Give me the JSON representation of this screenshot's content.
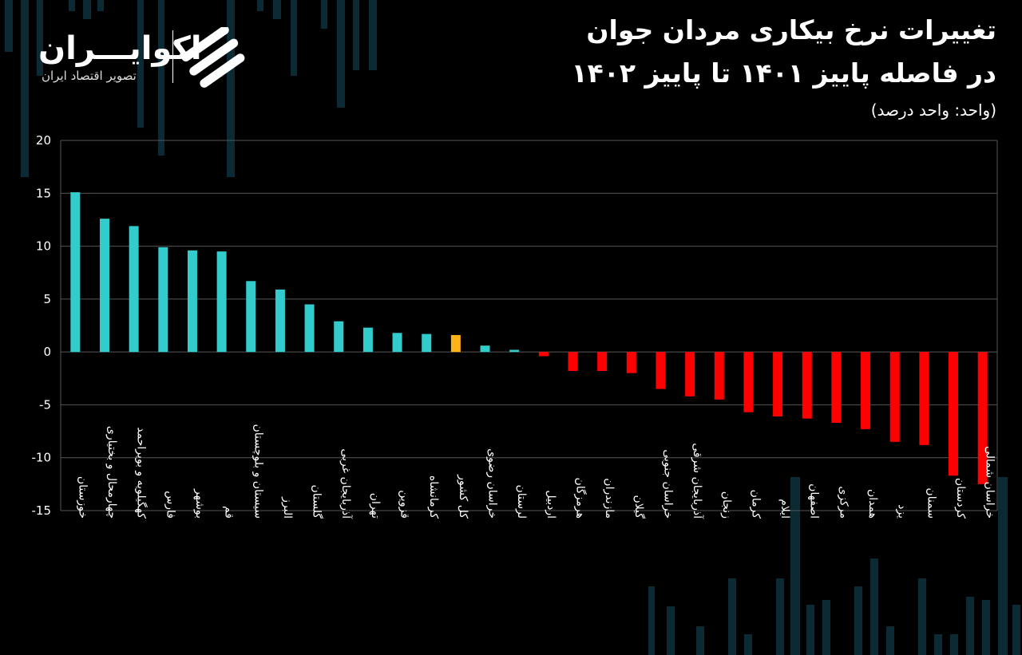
{
  "header": {
    "title_line1": "تغییرات نرخ بیکاری مردان جوان",
    "title_line2": "در فاصله پاییز ۱۴۰۱ تا پاییز ۱۴۰۲",
    "unit": "(واحد: واحد درصد)"
  },
  "logo": {
    "name": "اکوایـــران",
    "tagline": "تصویر اقتصاد ایران",
    "icon": "ecoiran-swirl-logo-icon"
  },
  "colors": {
    "background": "#000000",
    "positive": "#33cccc",
    "highlight": "#ffb319",
    "negative": "#ff0000",
    "grid": "#555555"
  },
  "chart_data": {
    "type": "bar",
    "title": "تغییرات نرخ بیکاری مردان جوان در فاصله پاییز ۱۴۰۱ تا پاییز ۱۴۰۲",
    "ylabel": "",
    "xlabel": "",
    "ylim": [
      -15,
      20
    ],
    "yticks": [
      20,
      15,
      10,
      5,
      0,
      -5,
      -10,
      -15
    ],
    "ytick_labels": [
      "20",
      "15",
      "10",
      "5",
      "0",
      "-5",
      "-10",
      "-15"
    ],
    "grid": true,
    "legend": "none",
    "highlight_category": "کل کشور",
    "categories": [
      "خوزستان",
      "چهارمحال و بختیاری",
      "کهگیلویه و بویراحمد",
      "فارس",
      "بوشهر",
      "قم",
      "سیستان و بلوچستان",
      "البرز",
      "گلستان",
      "آذربایجان غربی",
      "تهران",
      "قزوین",
      "کرمانشاه",
      "کل کشور",
      "خراسان رضوی",
      "لرستان",
      "اردبیل",
      "هرمزگان",
      "مازندران",
      "گیلان",
      "خراسان جنوبی",
      "آذربایجان شرقی",
      "زنجان",
      "کرمان",
      "ایلام",
      "اصفهان",
      "مرکزی",
      "همدان",
      "یزد",
      "سمنان",
      "کردستان",
      "خراسان شمالی"
    ],
    "values": [
      15.1,
      12.6,
      11.9,
      9.9,
      9.6,
      9.5,
      6.7,
      5.9,
      4.5,
      2.9,
      2.3,
      1.8,
      1.7,
      1.6,
      0.6,
      0.2,
      -0.4,
      -1.8,
      -1.8,
      -2.0,
      -3.5,
      -4.2,
      -4.5,
      -5.7,
      -6.1,
      -6.3,
      -6.7,
      -7.3,
      -8.5,
      -8.8,
      -11.7,
      -12.5
    ]
  }
}
